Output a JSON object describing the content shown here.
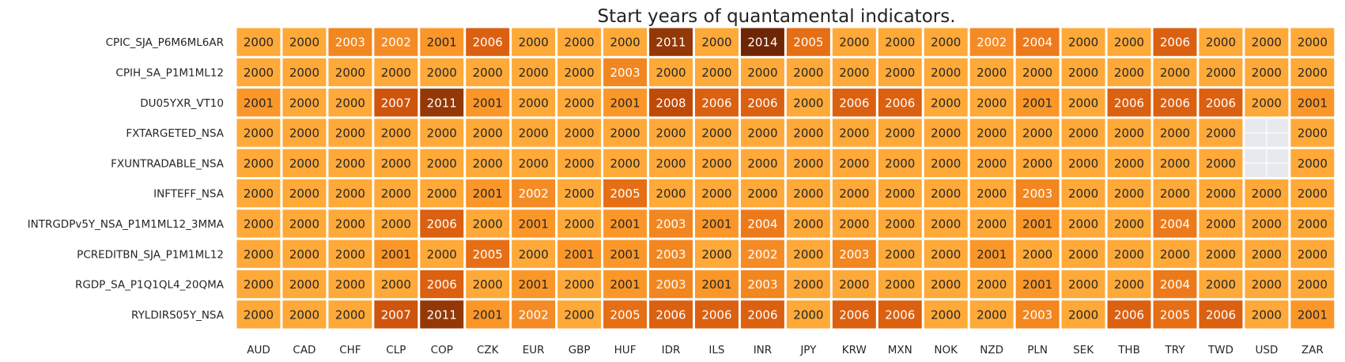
{
  "chart_data": {
    "type": "heatmap",
    "title": "Start years of quantamental indicators.",
    "xlabel": "",
    "ylabel": "",
    "grid": false,
    "legend": "none",
    "columns": [
      "AUD",
      "CAD",
      "CHF",
      "CLP",
      "COP",
      "CZK",
      "EUR",
      "GBP",
      "HUF",
      "IDR",
      "ILS",
      "INR",
      "JPY",
      "KRW",
      "MXN",
      "NOK",
      "NZD",
      "PLN",
      "SEK",
      "THB",
      "TRY",
      "TWD",
      "USD",
      "ZAR"
    ],
    "rows": [
      "CPIC_SJA_P6M6ML6AR",
      "CPIH_SA_P1M1ML12",
      "DU05YXR_VT10",
      "FXTARGETED_NSA",
      "FXUNTRADABLE_NSA",
      "INFTEFF_NSA",
      "INTRGDPv5Y_NSA_P1M1ML12_3MMA",
      "PCREDITBN_SJA_P1M1ML12",
      "RGDP_SA_P1Q1QL4_20QMA",
      "RYLDIRS05Y_NSA"
    ],
    "values": [
      [
        "2000",
        "2000",
        "2003",
        "2002",
        "2001",
        "2006",
        "2000",
        "2000",
        "2000",
        "2011",
        "2000",
        "2014",
        "2005",
        "2000",
        "2000",
        "2000",
        "2002",
        "2004",
        "2000",
        "2000",
        "2006",
        "2000",
        "2000",
        "2000"
      ],
      [
        "2000",
        "2000",
        "2000",
        "2000",
        "2000",
        "2000",
        "2000",
        "2000",
        "2003",
        "2000",
        "2000",
        "2000",
        "2000",
        "2000",
        "2000",
        "2000",
        "2000",
        "2000",
        "2000",
        "2000",
        "2000",
        "2000",
        "2000",
        "2000"
      ],
      [
        "2001",
        "2000",
        "2000",
        "2007",
        "2011",
        "2001",
        "2000",
        "2000",
        "2001",
        "2008",
        "2006",
        "2006",
        "2000",
        "2006",
        "2006",
        "2000",
        "2000",
        "2001",
        "2000",
        "2006",
        "2006",
        "2006",
        "2000",
        "2001"
      ],
      [
        "2000",
        "2000",
        "2000",
        "2000",
        "2000",
        "2000",
        "2000",
        "2000",
        "2000",
        "2000",
        "2000",
        "2000",
        "2000",
        "2000",
        "2000",
        "2000",
        "2000",
        "2000",
        "2000",
        "2000",
        "2000",
        "2000",
        "",
        "2000"
      ],
      [
        "2000",
        "2000",
        "2000",
        "2000",
        "2000",
        "2000",
        "2000",
        "2000",
        "2000",
        "2000",
        "2000",
        "2000",
        "2000",
        "2000",
        "2000",
        "2000",
        "2000",
        "2000",
        "2000",
        "2000",
        "2000",
        "2000",
        "",
        "2000"
      ],
      [
        "2000",
        "2000",
        "2000",
        "2000",
        "2000",
        "2001",
        "2002",
        "2000",
        "2005",
        "2000",
        "2000",
        "2000",
        "2000",
        "2000",
        "2000",
        "2000",
        "2000",
        "2003",
        "2000",
        "2000",
        "2000",
        "2000",
        "2000",
        "2000"
      ],
      [
        "2000",
        "2000",
        "2000",
        "2000",
        "2006",
        "2000",
        "2001",
        "2000",
        "2001",
        "2003",
        "2001",
        "2004",
        "2000",
        "2000",
        "2000",
        "2000",
        "2000",
        "2001",
        "2000",
        "2000",
        "2004",
        "2000",
        "2000",
        "2000"
      ],
      [
        "2000",
        "2000",
        "2000",
        "2001",
        "2000",
        "2005",
        "2000",
        "2001",
        "2001",
        "2003",
        "2000",
        "2002",
        "2000",
        "2003",
        "2000",
        "2000",
        "2001",
        "2000",
        "2000",
        "2000",
        "2000",
        "2000",
        "2000",
        "2000"
      ],
      [
        "2000",
        "2000",
        "2000",
        "2000",
        "2006",
        "2000",
        "2001",
        "2000",
        "2001",
        "2003",
        "2001",
        "2003",
        "2000",
        "2000",
        "2000",
        "2000",
        "2000",
        "2001",
        "2000",
        "2000",
        "2004",
        "2000",
        "2000",
        "2000"
      ],
      [
        "2000",
        "2000",
        "2000",
        "2007",
        "2011",
        "2001",
        "2002",
        "2000",
        "2005",
        "2006",
        "2006",
        "2006",
        "2000",
        "2006",
        "2006",
        "2000",
        "2000",
        "2003",
        "2000",
        "2006",
        "2005",
        "2006",
        "2000",
        "2001"
      ]
    ],
    "missing_color": "#e8e9ef",
    "colormap_stops": [
      {
        "value": 2000,
        "color": "#fea938"
      },
      {
        "value": 2001,
        "color": "#fa9728"
      },
      {
        "value": 2002,
        "color": "#f58b24"
      },
      {
        "value": 2003,
        "color": "#f2861f"
      },
      {
        "value": 2004,
        "color": "#ed7a1a"
      },
      {
        "value": 2005,
        "color": "#e66e15"
      },
      {
        "value": 2006,
        "color": "#db6010"
      },
      {
        "value": 2007,
        "color": "#cf540c"
      },
      {
        "value": 2008,
        "color": "#c04a08"
      },
      {
        "value": 2011,
        "color": "#933806"
      },
      {
        "value": 2014,
        "color": "#6e2604"
      }
    ]
  }
}
